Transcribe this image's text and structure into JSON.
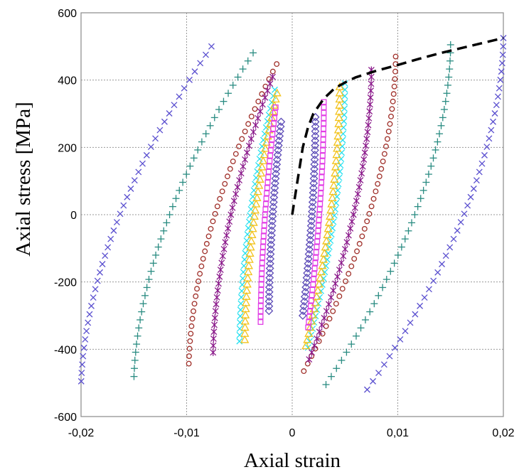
{
  "chart_data": {
    "type": "scatter",
    "title": "",
    "xlabel": "Axial strain",
    "ylabel": "Axial stress [MPa]",
    "xlim": [
      -0.02,
      0.02
    ],
    "ylim": [
      -600,
      600
    ],
    "xticks": [
      -0.02,
      -0.01,
      0,
      0.01,
      0.02
    ],
    "xtick_labels": [
      "-0,02",
      "-0,01",
      "0",
      "0,01",
      "0,02"
    ],
    "yticks": [
      -600,
      -400,
      -200,
      0,
      200,
      400,
      600
    ],
    "ytick_labels": [
      "-600",
      "-400",
      "-200",
      "0",
      "200",
      "400",
      "600"
    ],
    "grid": true,
    "legend": "none",
    "loops": [
      {
        "marker": "x",
        "color": "#5a4fcf",
        "amplitude": 0.02,
        "peak_stress": 525,
        "trough_stress": -520,
        "width": 0.0129
      },
      {
        "marker": "+",
        "color": "#2a8c82",
        "amplitude": 0.015,
        "peak_stress": 505,
        "trough_stress": -505,
        "width": 0.0118
      },
      {
        "marker": "o",
        "color": "#a0302a",
        "amplitude": 0.0098,
        "peak_stress": 470,
        "trough_stress": -465,
        "width": 0.0087
      },
      {
        "marker": "asterisk",
        "color": "#8b1a8b",
        "amplitude": 0.0075,
        "peak_stress": 430,
        "trough_stress": -430,
        "width": 0.0059
      },
      {
        "marker": "x",
        "color": "#26e0f0",
        "amplitude": 0.005,
        "peak_stress": 390,
        "trough_stress": -395,
        "width": 0.0035
      },
      {
        "marker": "triangle",
        "color": "#f2c21a",
        "amplitude": 0.0045,
        "peak_stress": 380,
        "trough_stress": -390,
        "width": 0.0032
      },
      {
        "marker": "square",
        "color": "#e23ee6",
        "amplitude": 0.003,
        "peak_stress": 335,
        "trough_stress": -335,
        "width": 0.0015
      },
      {
        "marker": "diamond",
        "color": "#5e4db8",
        "amplitude": 0.0022,
        "peak_stress": 290,
        "trough_stress": -300,
        "width": 0.0012
      }
    ],
    "monotonic_curve": {
      "style": "dashed",
      "color": "#000000",
      "x": [
        0,
        0.0005,
        0.001,
        0.0015,
        0.002,
        0.003,
        0.004,
        0.005,
        0.006,
        0.008,
        0.01,
        0.012,
        0.014,
        0.016,
        0.018,
        0.02
      ],
      "y": [
        0,
        100,
        200,
        260,
        300,
        345,
        375,
        393,
        408,
        428,
        445,
        463,
        480,
        495,
        510,
        525
      ]
    }
  }
}
